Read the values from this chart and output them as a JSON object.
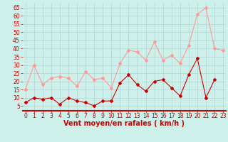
{
  "x": [
    0,
    1,
    2,
    3,
    4,
    5,
    6,
    7,
    8,
    9,
    10,
    11,
    12,
    13,
    14,
    15,
    16,
    17,
    18,
    19,
    20,
    21,
    22,
    23
  ],
  "wind_avg": [
    7,
    10,
    9,
    10,
    6,
    10,
    8,
    7,
    5,
    8,
    8,
    19,
    24,
    18,
    14,
    20,
    21,
    16,
    11,
    24,
    34,
    10,
    21,
    null
  ],
  "wind_gust": [
    15,
    30,
    18,
    22,
    23,
    22,
    17,
    26,
    21,
    22,
    16,
    31,
    39,
    38,
    33,
    44,
    33,
    36,
    31,
    42,
    61,
    65,
    40,
    39
  ],
  "bg_color": "#cef0ea",
  "grid_color": "#aacccc",
  "avg_color": "#cc0000",
  "gust_color": "#ff9999",
  "xlabel": "Vent moyen/en rafales ( km/h )",
  "xlabel_color": "#cc0000",
  "ylabel_ticks": [
    5,
    10,
    15,
    20,
    25,
    30,
    35,
    40,
    45,
    50,
    55,
    60,
    65
  ],
  "ylim": [
    2,
    68
  ],
  "xlim": [
    -0.3,
    23.3
  ],
  "marker": "D",
  "markersize": 2,
  "linewidth": 0.8,
  "tick_fontsize": 5.5,
  "xlabel_fontsize": 7
}
